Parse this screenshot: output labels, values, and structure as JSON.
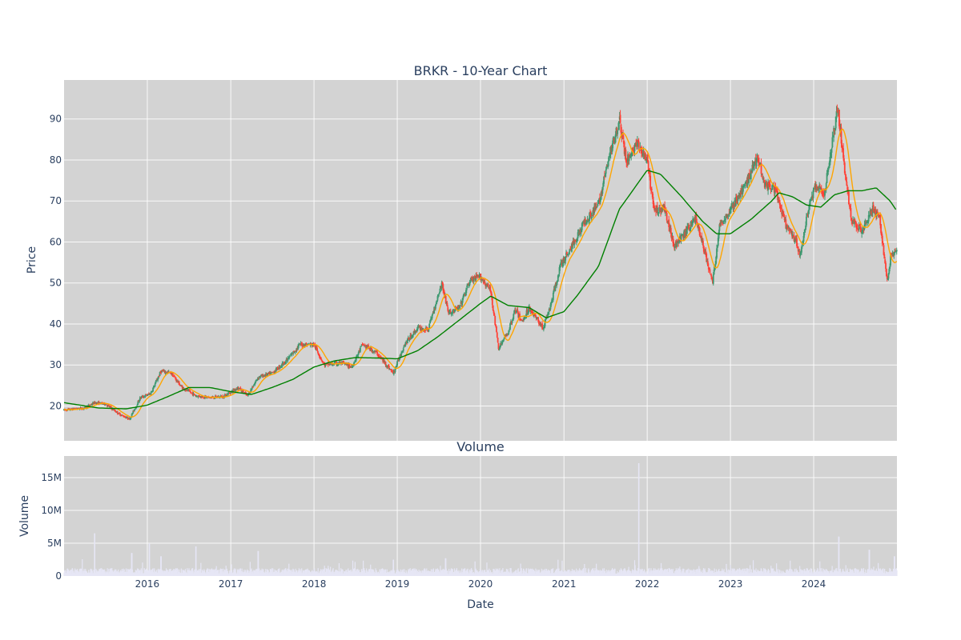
{
  "chart_data": [
    {
      "type": "candlestick",
      "title": "BRKR - 10-Year Chart",
      "xlabel": "",
      "ylabel": "Price",
      "xlim": [
        "2015-01-01",
        "2024-12-31"
      ],
      "ylim": [
        11.5,
        99.5
      ],
      "yticks": [
        20,
        30,
        40,
        50,
        60,
        70,
        80,
        90
      ],
      "grid": true,
      "up_color": "#3d9970",
      "down_color": "#ff4136",
      "ma_short_color": "#ffa500",
      "ma_long_color": "#008000",
      "price_path": [
        [
          "2015-01-01",
          19.0
        ],
        [
          "2015-04-01",
          19.5
        ],
        [
          "2015-05-15",
          20.8
        ],
        [
          "2015-07-01",
          20.5
        ],
        [
          "2015-09-01",
          18.0
        ],
        [
          "2015-10-15",
          16.8
        ],
        [
          "2015-12-01",
          22.0
        ],
        [
          "2016-01-15",
          23.0
        ],
        [
          "2016-03-01",
          28.5
        ],
        [
          "2016-04-15",
          28.0
        ],
        [
          "2016-06-01",
          24.5
        ],
        [
          "2016-08-01",
          22.5
        ],
        [
          "2016-10-01",
          22.0
        ],
        [
          "2016-12-01",
          22.3
        ],
        [
          "2017-02-01",
          24.5
        ],
        [
          "2017-03-15",
          22.5
        ],
        [
          "2017-05-01",
          27.0
        ],
        [
          "2017-07-01",
          28.0
        ],
        [
          "2017-09-01",
          31.0
        ],
        [
          "2017-11-01",
          35.0
        ],
        [
          "2018-01-01",
          35.0
        ],
        [
          "2018-02-15",
          30.0
        ],
        [
          "2018-05-01",
          30.5
        ],
        [
          "2018-06-15",
          29.5
        ],
        [
          "2018-08-01",
          35.0
        ],
        [
          "2018-10-01",
          33.0
        ],
        [
          "2018-12-15",
          28.0
        ],
        [
          "2019-02-01",
          35.0
        ],
        [
          "2019-04-01",
          39.0
        ],
        [
          "2019-05-15",
          38.5
        ],
        [
          "2019-07-15",
          50.0
        ],
        [
          "2019-08-15",
          42.5
        ],
        [
          "2019-10-01",
          44.0
        ],
        [
          "2019-11-15",
          50.5
        ],
        [
          "2020-01-01",
          51.5
        ],
        [
          "2020-02-15",
          48.0
        ],
        [
          "2020-03-20",
          34.0
        ],
        [
          "2020-05-01",
          38.0
        ],
        [
          "2020-06-01",
          43.5
        ],
        [
          "2020-07-01",
          40.5
        ],
        [
          "2020-08-01",
          44.0
        ],
        [
          "2020-10-01",
          39.0
        ],
        [
          "2020-11-01",
          44.0
        ],
        [
          "2020-12-15",
          54.0
        ],
        [
          "2021-02-15",
          60.0
        ],
        [
          "2021-04-01",
          65.0
        ],
        [
          "2021-06-01",
          69.0
        ],
        [
          "2021-07-15",
          80.0
        ],
        [
          "2021-09-01",
          90.0
        ],
        [
          "2021-10-01",
          79.5
        ],
        [
          "2021-11-15",
          84.0
        ],
        [
          "2021-12-30",
          80.0
        ],
        [
          "2022-02-01",
          67.5
        ],
        [
          "2022-03-15",
          68.5
        ],
        [
          "2022-05-01",
          59.0
        ],
        [
          "2022-06-15",
          62.0
        ],
        [
          "2022-08-01",
          66.0
        ],
        [
          "2022-10-15",
          50.0
        ],
        [
          "2022-11-15",
          64.0
        ],
        [
          "2023-01-01",
          68.0
        ],
        [
          "2023-03-01",
          73.0
        ],
        [
          "2023-05-01",
          81.0
        ],
        [
          "2023-06-01",
          74.0
        ],
        [
          "2023-07-15",
          73.0
        ],
        [
          "2023-09-01",
          64.0
        ],
        [
          "2023-10-15",
          60.0
        ],
        [
          "2023-11-01",
          56.5
        ],
        [
          "2023-12-15",
          70.0
        ],
        [
          "2024-01-15",
          74.0
        ],
        [
          "2024-02-15",
          71.0
        ],
        [
          "2024-04-15",
          93.0
        ],
        [
          "2024-05-15",
          78.0
        ],
        [
          "2024-06-15",
          65.0
        ],
        [
          "2024-08-01",
          63.0
        ],
        [
          "2024-09-15",
          68.0
        ],
        [
          "2024-10-15",
          66.0
        ],
        [
          "2024-11-20",
          50.0
        ],
        [
          "2024-12-05",
          57.0
        ],
        [
          "2024-12-31",
          58.0
        ]
      ],
      "ma_long": [
        [
          "2015-01-01",
          20.8
        ],
        [
          "2015-06-01",
          19.5
        ],
        [
          "2015-10-01",
          19.3
        ],
        [
          "2016-01-01",
          20.2
        ],
        [
          "2016-04-01",
          22.3
        ],
        [
          "2016-07-01",
          24.5
        ],
        [
          "2016-10-01",
          24.5
        ],
        [
          "2017-01-01",
          23.5
        ],
        [
          "2017-04-01",
          22.8
        ],
        [
          "2017-07-01",
          24.5
        ],
        [
          "2017-10-01",
          26.5
        ],
        [
          "2018-01-01",
          29.5
        ],
        [
          "2018-04-01",
          31.0
        ],
        [
          "2018-07-01",
          31.8
        ],
        [
          "2018-10-01",
          31.7
        ],
        [
          "2019-01-01",
          31.5
        ],
        [
          "2019-04-01",
          33.5
        ],
        [
          "2019-07-01",
          37.0
        ],
        [
          "2019-10-01",
          41.0
        ],
        [
          "2020-01-01",
          45.0
        ],
        [
          "2020-02-15",
          46.8
        ],
        [
          "2020-05-01",
          44.5
        ],
        [
          "2020-08-01",
          44.0
        ],
        [
          "2020-10-15",
          41.5
        ],
        [
          "2021-01-01",
          43.0
        ],
        [
          "2021-03-01",
          47.0
        ],
        [
          "2021-06-01",
          54.0
        ],
        [
          "2021-09-01",
          68.0
        ],
        [
          "2022-01-01",
          77.5
        ],
        [
          "2022-03-01",
          76.5
        ],
        [
          "2022-06-01",
          71.0
        ],
        [
          "2022-09-01",
          65.0
        ],
        [
          "2022-11-01",
          62.0
        ],
        [
          "2023-01-01",
          62.0
        ],
        [
          "2023-04-01",
          65.5
        ],
        [
          "2023-07-01",
          70.0
        ],
        [
          "2023-08-01",
          72.0
        ],
        [
          "2023-10-01",
          71.0
        ],
        [
          "2023-12-01",
          69.0
        ],
        [
          "2024-02-01",
          68.5
        ],
        [
          "2024-04-01",
          71.5
        ],
        [
          "2024-06-01",
          72.5
        ],
        [
          "2024-08-01",
          72.5
        ],
        [
          "2024-10-01",
          73.2
        ],
        [
          "2024-12-01",
          70.0
        ],
        [
          "2024-12-31",
          67.5
        ]
      ]
    },
    {
      "type": "bar",
      "title": "Volume",
      "xlabel": "Date",
      "ylabel": "Volume",
      "xlim": [
        "2015-01-01",
        "2024-12-31"
      ],
      "ylim": [
        0,
        18300000
      ],
      "yticks": [
        0,
        5000000,
        10000000,
        15000000
      ],
      "ytick_labels": [
        "0",
        "5M",
        "10M",
        "15M"
      ],
      "xticks": [
        "2016-01-01",
        "2017-01-01",
        "2018-01-01",
        "2019-01-01",
        "2020-01-01",
        "2021-01-01",
        "2022-01-01",
        "2023-01-01",
        "2024-01-01"
      ],
      "xtick_labels": [
        "2016",
        "2017",
        "2018",
        "2019",
        "2020",
        "2021",
        "2022",
        "2023",
        "2024"
      ],
      "bar_color": "#e6e6f5",
      "baseline_volume": 900000,
      "spikes": [
        [
          "2015-05-15",
          6500000
        ],
        [
          "2015-10-25",
          3500000
        ],
        [
          "2016-01-10",
          5000000
        ],
        [
          "2016-03-01",
          3000000
        ],
        [
          "2016-08-01",
          4500000
        ],
        [
          "2017-05-01",
          3800000
        ],
        [
          "2018-12-15",
          2500000
        ],
        [
          "2019-08-01",
          2700000
        ],
        [
          "2021-11-25",
          17200000
        ],
        [
          "2024-04-20",
          6000000
        ],
        [
          "2024-09-01",
          4000000
        ],
        [
          "2024-12-20",
          3000000
        ]
      ]
    }
  ]
}
